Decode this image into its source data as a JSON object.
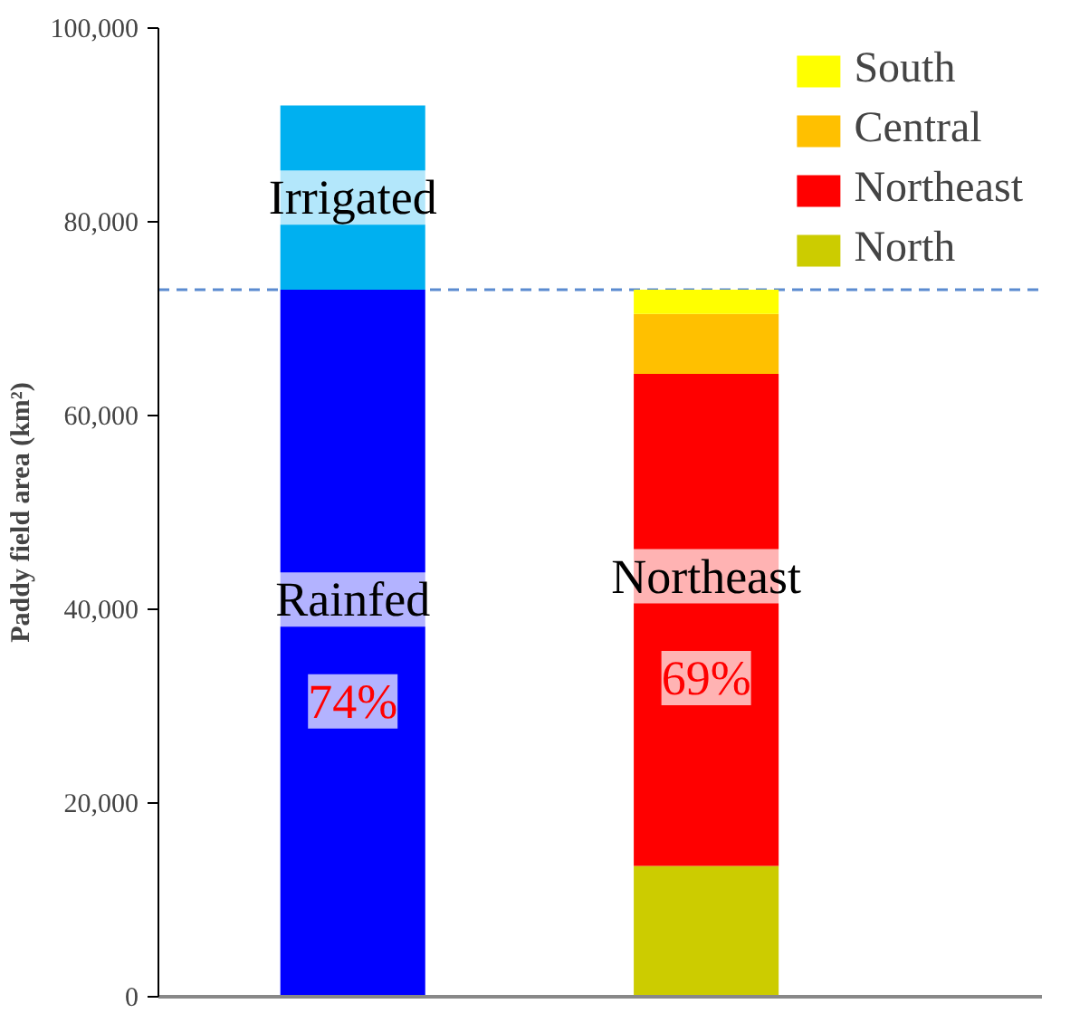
{
  "chart_data": {
    "type": "bar",
    "stacked": true,
    "ylabel": "Paddy field area (km²)",
    "categories": [
      null,
      null
    ],
    "series": [
      {
        "name": "Rainfed",
        "color": "#0000ff",
        "values": [
          73000,
          null
        ]
      },
      {
        "name": "Irrigated",
        "color": "#00b0f0",
        "values": [
          19000,
          null
        ]
      },
      {
        "name": "North",
        "color": "#cccc00",
        "values": [
          null,
          13500
        ]
      },
      {
        "name": "Northeast",
        "color": "#ff0000",
        "values": [
          null,
          50800
        ]
      },
      {
        "name": "Central",
        "color": "#ffc000",
        "values": [
          null,
          6200
        ]
      },
      {
        "name": "South",
        "color": "#ffff00",
        "values": [
          null,
          2500
        ]
      }
    ],
    "ylim": [
      0,
      100000
    ],
    "yticks": [
      {
        "value": 0,
        "label": "0"
      },
      {
        "value": 20000,
        "label": "20,000"
      },
      {
        "value": 40000,
        "label": "40,000"
      },
      {
        "value": 60000,
        "label": "60,000"
      },
      {
        "value": 80000,
        "label": "80,000"
      },
      {
        "value": 100000,
        "label": "100,000"
      }
    ],
    "ref_lines": [
      {
        "axis": "y",
        "value": 73000,
        "color": "#5b8bd0",
        "line_style": "dashed"
      }
    ],
    "annotations": [
      "74%",
      "69%"
    ],
    "legend": "top right",
    "grid": false
  }
}
